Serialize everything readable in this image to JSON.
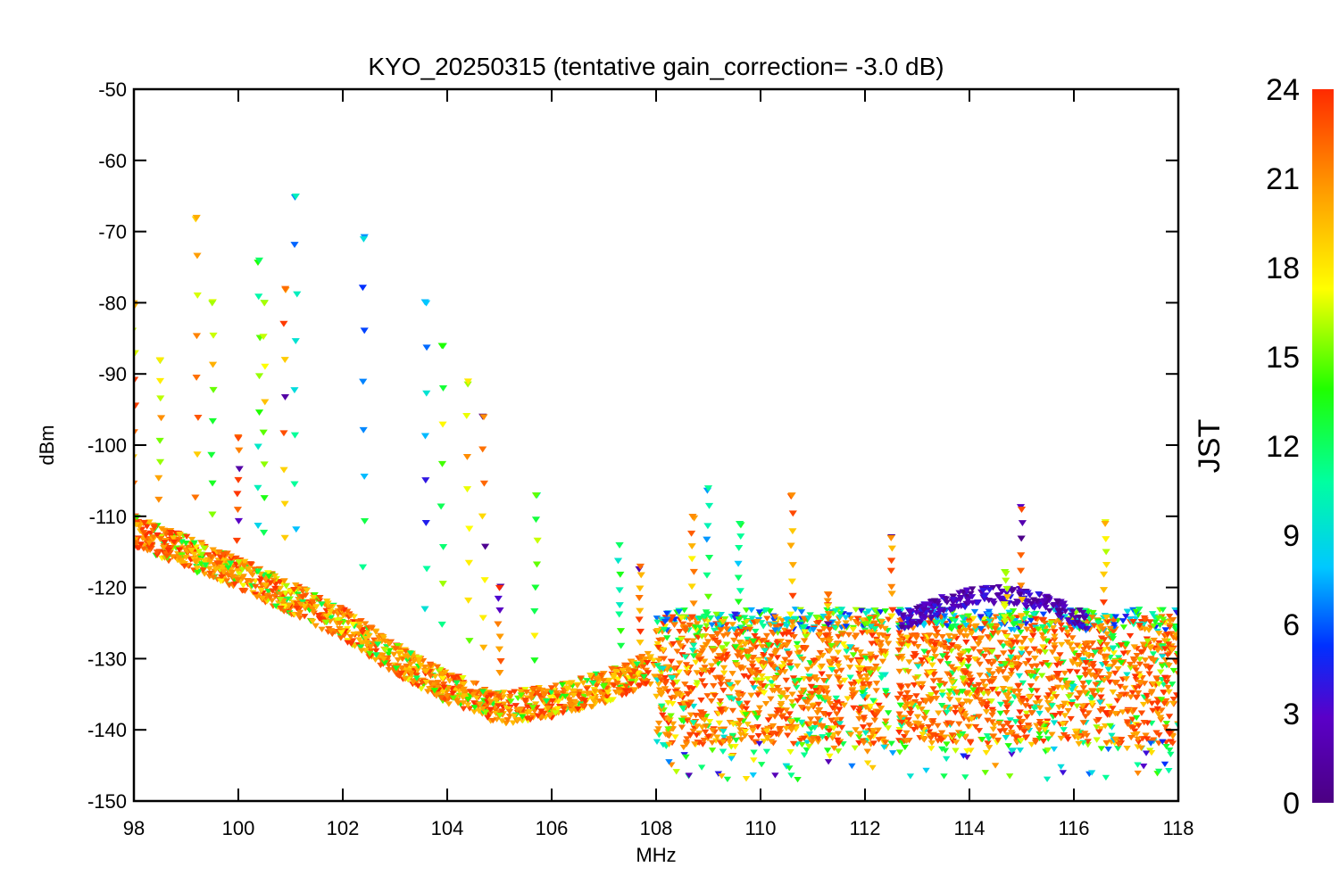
{
  "chart_data": {
    "type": "scatter",
    "title": "KYO_20250315 (tentative gain_correction= -3.0 dB)",
    "xlabel": "MHz",
    "ylabel": "dBm",
    "xlim": [
      98,
      118
    ],
    "ylim": [
      -150,
      -50
    ],
    "xticks": [
      98,
      100,
      102,
      104,
      106,
      108,
      110,
      112,
      114,
      116,
      118
    ],
    "yticks": [
      -50,
      -60,
      -70,
      -80,
      -90,
      -100,
      -110,
      -120,
      -130,
      -140,
      -150
    ],
    "grid": false,
    "colorbar": {
      "label": "JST",
      "range": [
        0,
        24
      ],
      "ticks": [
        0,
        3,
        6,
        9,
        12,
        15,
        18,
        21,
        24
      ],
      "colormap": "rainbow (purple-blue-cyan-green-yellow-orange-red)"
    },
    "noise_floor": [
      {
        "x": 98,
        "y": -112
      },
      {
        "x": 100,
        "y": -118
      },
      {
        "x": 102,
        "y": -125
      },
      {
        "x": 103,
        "y": -130
      },
      {
        "x": 104,
        "y": -134
      },
      {
        "x": 105,
        "y": -137
      },
      {
        "x": 106,
        "y": -136
      },
      {
        "x": 107,
        "y": -134
      },
      {
        "x": 108,
        "y": -131
      },
      {
        "x": 118,
        "y": -133
      }
    ],
    "peaks": [
      {
        "x": 98.0,
        "y_top": -80,
        "jst": 20
      },
      {
        "x": 98.5,
        "y_top": -88,
        "jst": 18
      },
      {
        "x": 99.2,
        "y_top": -68,
        "jst": 20
      },
      {
        "x": 99.5,
        "y_top": -80,
        "jst": 16
      },
      {
        "x": 100.0,
        "y_top": -99,
        "jst": 23
      },
      {
        "x": 100.4,
        "y_top": -74,
        "jst": 12
      },
      {
        "x": 100.5,
        "y_top": -80,
        "jst": 16
      },
      {
        "x": 100.9,
        "y_top": -78,
        "jst": 22
      },
      {
        "x": 101.1,
        "y_top": -65,
        "jst": 10
      },
      {
        "x": 102.4,
        "y_top": -71,
        "jst": 9
      },
      {
        "x": 103.6,
        "y_top": -80,
        "jst": 8
      },
      {
        "x": 103.9,
        "y_top": -86,
        "jst": 14
      },
      {
        "x": 104.4,
        "y_top": -91,
        "jst": 18
      },
      {
        "x": 104.7,
        "y_top": -96,
        "jst": 21
      },
      {
        "x": 105.0,
        "y_top": -120,
        "jst": 24
      },
      {
        "x": 105.7,
        "y_top": -107,
        "jst": 15
      },
      {
        "x": 107.3,
        "y_top": -114,
        "jst": 12
      },
      {
        "x": 107.7,
        "y_top": -117,
        "jst": 22
      },
      {
        "x": 108.7,
        "y_top": -110,
        "jst": 21
      },
      {
        "x": 109.0,
        "y_top": -106,
        "jst": 11
      },
      {
        "x": 109.6,
        "y_top": -111,
        "jst": 12
      },
      {
        "x": 110.6,
        "y_top": -107,
        "jst": 21
      },
      {
        "x": 111.3,
        "y_top": -121,
        "jst": 22
      },
      {
        "x": 112.5,
        "y_top": -113,
        "jst": 21
      },
      {
        "x": 114.7,
        "y_top": -118,
        "jst": 16
      },
      {
        "x": 115.0,
        "y_top": -109,
        "jst": 23
      },
      {
        "x": 116.6,
        "y_top": -111,
        "jst": 20
      }
    ]
  }
}
